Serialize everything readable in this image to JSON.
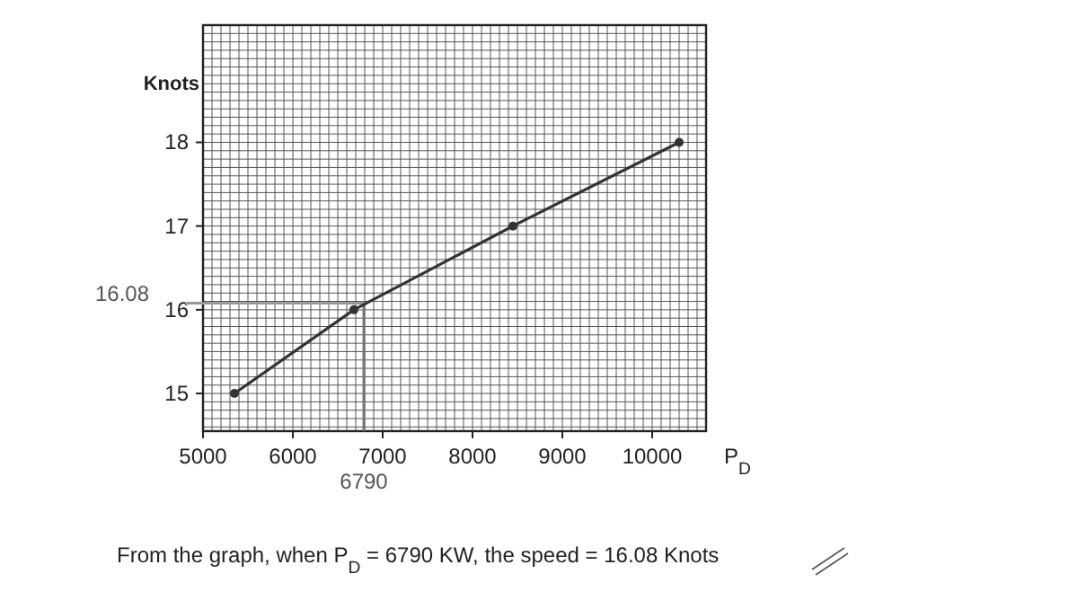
{
  "chart_data": {
    "type": "line",
    "xlabel": "P$_{D}$",
    "ylabel": "Knots",
    "x": [
      5350,
      6680,
      8450,
      10300
    ],
    "series": [
      {
        "color": "#333333",
        "values": [
          15,
          16,
          17,
          18
        ]
      }
    ],
    "xlim": [
      5000,
      10600
    ],
    "ylim": [
      14.55,
      19.4
    ],
    "xticks": [
      5000,
      6000,
      7000,
      8000,
      9000,
      10000
    ],
    "yticks": [
      15,
      16,
      17,
      18
    ],
    "grid": true,
    "marker": "circle",
    "line_style": "solid",
    "ref_lines": [
      {
        "axis": "y",
        "value": 16.08,
        "label": "16.08",
        "color": "#999999"
      },
      {
        "axis": "x",
        "value": 6790,
        "label": "6790",
        "color": "#777777"
      }
    ],
    "annotations": [
      "From the graph, when P$_{D}$ = 6790 KW, the speed = 16.08 Knots"
    ]
  }
}
